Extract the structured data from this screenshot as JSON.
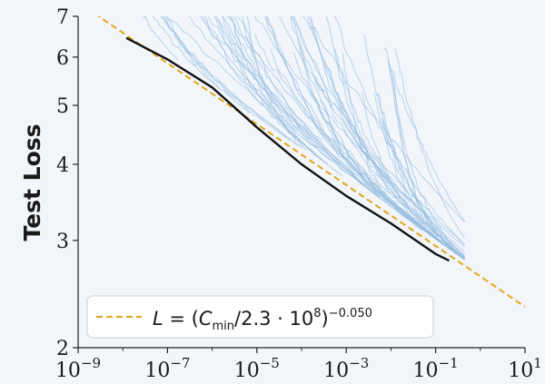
{
  "chart_data": {
    "type": "line",
    "ylabel": "Test Loss",
    "xlabel": "",
    "x_scale": "log",
    "y_scale": "log",
    "xlim": [
      1e-09,
      10
    ],
    "ylim": [
      2,
      7
    ],
    "x_ticks": [
      1e-09,
      1e-07,
      1e-05,
      0.001,
      0.1,
      10
    ],
    "x_tick_bases": [
      "10",
      "10",
      "10",
      "10",
      "10",
      "10"
    ],
    "x_tick_exponents": [
      "−9",
      "−7",
      "−5",
      "−3",
      "−1",
      "1"
    ],
    "y_ticks": [
      2,
      3,
      4,
      5,
      6,
      7
    ],
    "y_tick_labels": [
      "2",
      "3",
      "4",
      "5",
      "6",
      "7"
    ],
    "grid": false,
    "colors": {
      "runs": "#8fb9de",
      "frontier": "#111111",
      "fit": "#e3a51b",
      "background": "#f2f6fb"
    },
    "legend": {
      "placement": "bottom-left",
      "label_L": "L",
      "label_eq": " = (",
      "label_C": "C",
      "label_sub": "min",
      "label_rest": "/2.3 · 10",
      "label_exp8": "8",
      "label_close": ")",
      "label_exp": "−0.050"
    },
    "fit": {
      "C0": 230000000.0,
      "alpha": 0.05
    },
    "frontier": {
      "x": [
        1.2e-08,
        1e-07,
        1e-06,
        1e-05,
        0.0001,
        0.001,
        0.01,
        0.1,
        0.2
      ],
      "y": [
        6.45,
        5.95,
        5.35,
        4.6,
        4.0,
        3.55,
        3.2,
        2.85,
        2.78
      ]
    }
  }
}
